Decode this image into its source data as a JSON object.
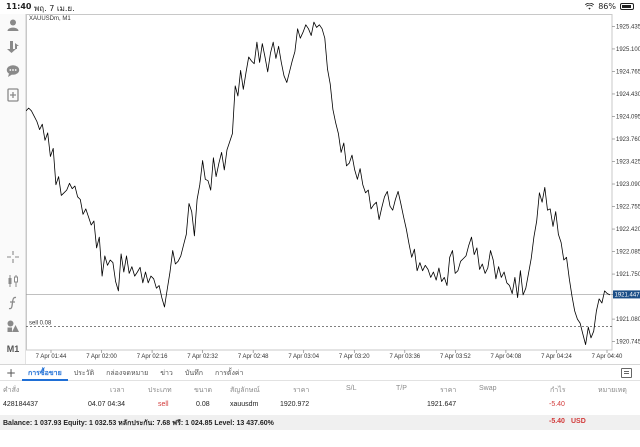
{
  "status_bar": {
    "time": "11:40",
    "date": "พฤ. 7 เม.ย.",
    "battery": "86%",
    "battery_level": 0.86
  },
  "chart": {
    "symbol_title": "XAUUSDm, M1",
    "sell_line_label": "sell 0.08",
    "current_price_label": "1921.447"
  },
  "left_toolbar": {
    "timeframe": "M1"
  },
  "chart_data": {
    "type": "line",
    "series": [
      {
        "values": [
          1924.18,
          1924.22,
          1924.18,
          1924.1,
          1924.02,
          1923.9,
          1923.98,
          1923.74,
          1923.85,
          1923.5,
          1923.62,
          1923.08,
          1923.2,
          1922.92,
          1922.96,
          1923.0,
          1923.1,
          1923.02,
          1923.06,
          1922.9,
          1922.86,
          1922.64,
          1922.72,
          1922.6,
          1922.48,
          1922.54,
          1922.14,
          1922.3,
          1921.72,
          1922.02,
          1921.88,
          1921.96,
          1921.92,
          1921.64,
          1921.5,
          1922.05,
          1921.78,
          1922.02,
          1921.76,
          1921.86,
          1921.72,
          1921.78,
          1921.85,
          1921.62,
          1921.78,
          1921.62,
          1921.72,
          1921.68,
          1921.54,
          1921.58,
          1921.4,
          1921.26,
          1921.52,
          1921.78,
          1922.1,
          1921.9,
          1921.94,
          1922.02,
          1922.18,
          1922.34,
          1922.8,
          1922.68,
          1922.32,
          1922.86,
          1923.08,
          1923.44,
          1923.16,
          1923.14,
          1923.0,
          1923.48,
          1923.2,
          1923.4,
          1923.56,
          1923.3,
          1923.6,
          1923.72,
          1923.84,
          1924.55,
          1924.4,
          1924.78,
          1924.5,
          1924.75,
          1924.98,
          1924.92,
          1924.88,
          1925.2,
          1924.9,
          1925.18,
          1924.98,
          1924.76,
          1925.04,
          1925.2,
          1924.96,
          1925.14,
          1924.9,
          1924.7,
          1924.6,
          1924.76,
          1924.92,
          1925.06,
          1925.4,
          1925.26,
          1925.35,
          1925.46,
          1925.4,
          1925.3,
          1925.5,
          1925.42,
          1925.46,
          1925.4,
          1925.26,
          1924.8,
          1924.58,
          1924.2,
          1924.0,
          1923.84,
          1923.56,
          1923.7,
          1923.36,
          1923.4,
          1923.52,
          1923.3,
          1923.16,
          1923.32,
          1923.08,
          1922.96,
          1923.0,
          1922.72,
          1922.78,
          1922.82,
          1922.56,
          1922.74,
          1922.9,
          1922.98,
          1922.76,
          1922.7,
          1922.86,
          1922.98,
          1922.8,
          1922.6,
          1922.42,
          1922.2,
          1922.0,
          1922.12,
          1921.8,
          1921.92,
          1921.8,
          1921.88,
          1921.82,
          1921.7,
          1921.78,
          1921.66,
          1921.84,
          1921.64,
          1921.7,
          1921.58,
          1922.0,
          1922.1,
          1921.76,
          1921.8,
          1921.94,
          1921.98,
          1922.02,
          1922.18,
          1922.3,
          1922.04,
          1922.14,
          1921.82,
          1921.9,
          1921.76,
          1921.84,
          1922.1,
          1921.96,
          1921.68,
          1921.86,
          1921.7,
          1921.78,
          1921.62,
          1921.58,
          1921.46,
          1921.7,
          1921.4,
          1921.8,
          1921.44,
          1921.54,
          1921.76,
          1921.98,
          1922.3,
          1922.54,
          1922.96,
          1922.82,
          1923.04,
          1922.7,
          1922.72,
          1922.46,
          1922.68,
          1922.34,
          1922.22,
          1921.96,
          1922.0,
          1921.68,
          1921.42,
          1921.2,
          1921.08,
          1921.02,
          1920.86,
          1920.7,
          1920.96,
          1920.8,
          1920.9,
          1921.2,
          1921.38,
          1921.32,
          1921.5,
          1921.46,
          1921.44
        ]
      }
    ],
    "x_ticks": [
      "7 Apr 01:44",
      "7 Apr 02:00",
      "7 Apr 02:16",
      "7 Apr 02:32",
      "7 Apr 02:48",
      "7 Apr 03:04",
      "7 Apr 03:20",
      "7 Apr 03:36",
      "7 Apr 03:52",
      "7 Apr 04:08",
      "7 Apr 04:24",
      "7 Apr 04:40"
    ],
    "y_ticks": [
      "1925.435",
      "1925.100",
      "1924.765",
      "1924.430",
      "1924.095",
      "1923.760",
      "1923.425",
      "1923.090",
      "1922.755",
      "1922.420",
      "1922.085",
      "1921.750",
      "1921.447",
      "1921.080",
      "1920.745"
    ],
    "ylim": [
      1920.62,
      1925.62
    ],
    "sell_price": 1920.972,
    "current_price": 1921.447,
    "line_color": "#000000",
    "sell_line_color": "#555555",
    "grid": true
  },
  "panel": {
    "tabs": [
      "การซื้อขาย",
      "ประวัติ",
      "กล่องจดหมาย",
      "ข่าว",
      "บันทึก",
      "การตั้งค่า"
    ],
    "active_tab": "การซื้อขาย",
    "columns": {
      "order": "คำสั่ง",
      "time": "เวลา",
      "type": "ประเภท",
      "volume": "ขนาด",
      "symbol": "สัญลักษณ์",
      "price": "ราคา",
      "sl": "S/L",
      "tp": "T/P",
      "price2": "ราคา",
      "swap": "Swap",
      "profit": "กำไร",
      "comment": "หมายเหตุ"
    },
    "row": {
      "order": "428184437",
      "time": "04.07 04:34",
      "type": "sell",
      "volume": "0.08",
      "symbol": "xauusdm",
      "price": "1920.972",
      "sl": "",
      "tp": "",
      "current": "1921.647",
      "swap": "",
      "profit": "-5.40",
      "comment": ""
    },
    "summary": {
      "text": "Balance: 1 037.93 Equity: 1 032.53 หลักประกัน: 7.68 ฟรี: 1 024.85 Level: 13 437.60%",
      "profit": "-5.40",
      "currency": "USD"
    }
  },
  "colors": {
    "accent": "#1f6fd6",
    "loss": "#d23a3a"
  }
}
